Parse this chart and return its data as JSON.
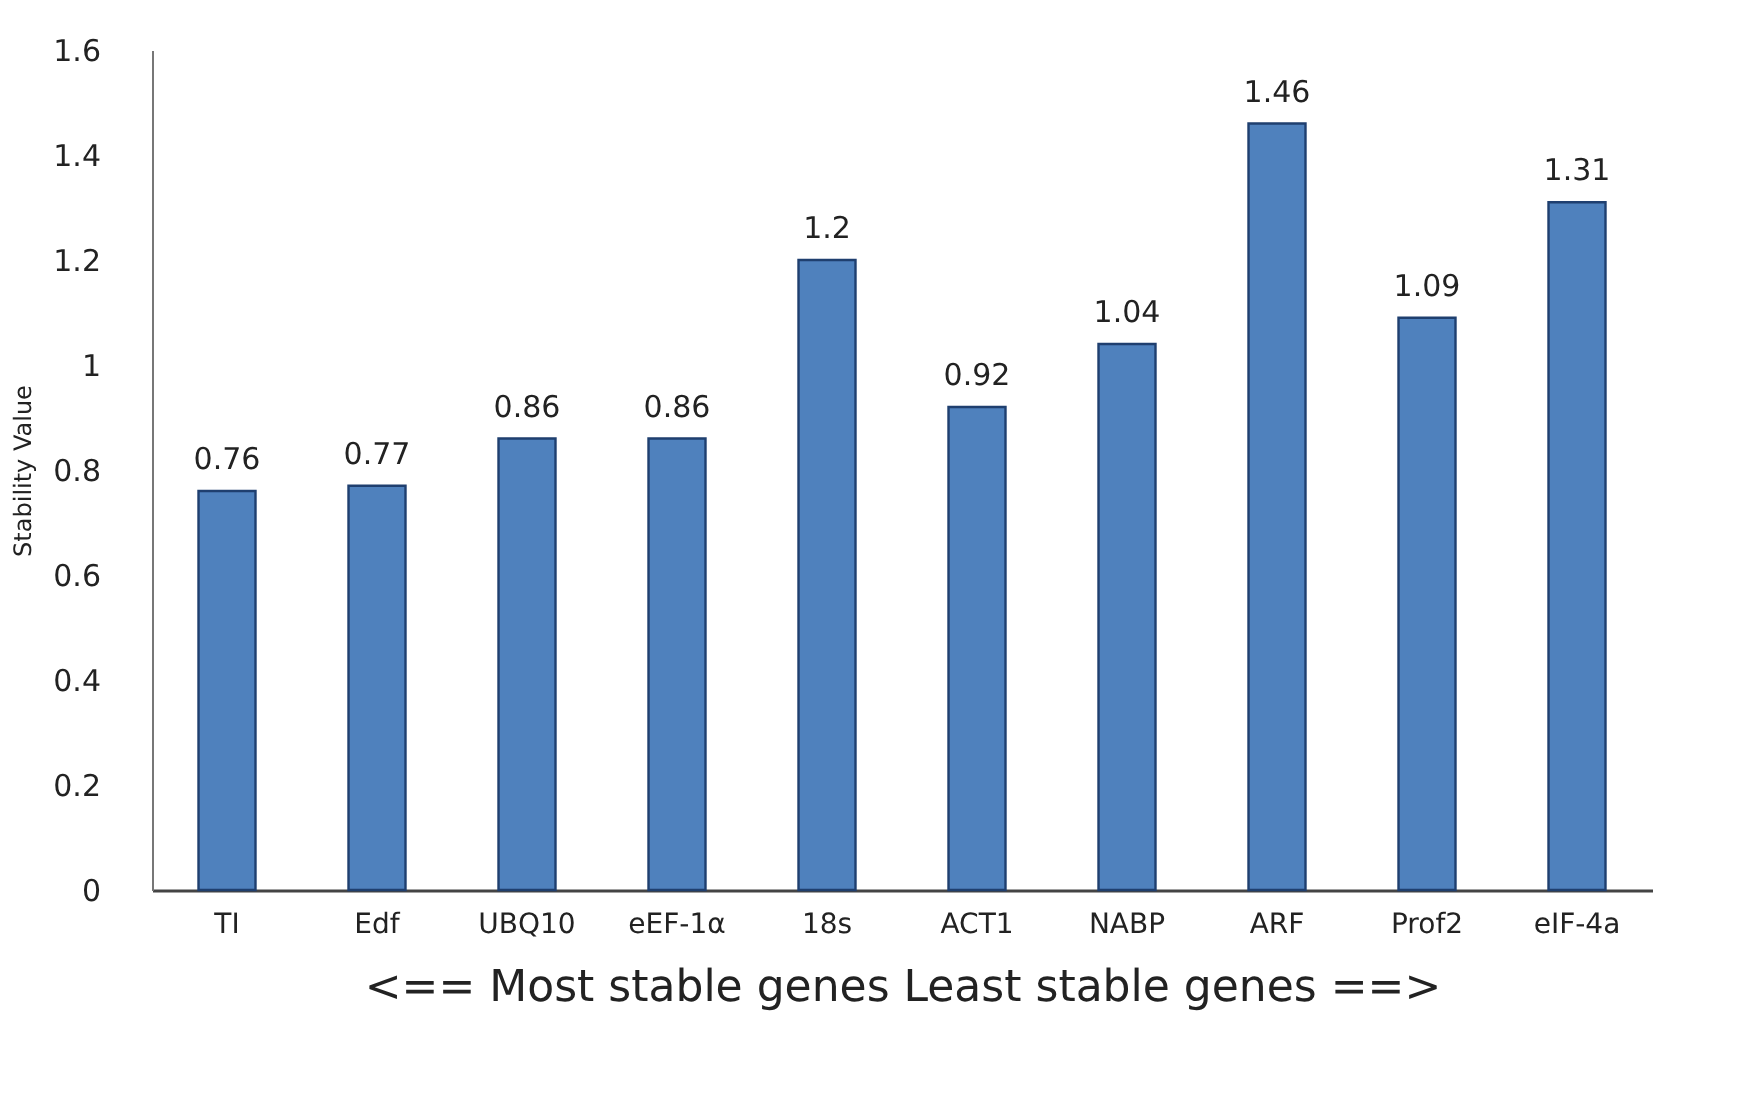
{
  "chart_data": {
    "type": "bar",
    "ylabel": "Stability Value",
    "xlabel": "<== Most stable genes    Least stable genes ==>",
    "categories": [
      "TI",
      "Edf",
      "UBQ10",
      "eEF-1α",
      "18s",
      "ACT1",
      "NABP",
      "ARF",
      "Prof2",
      "eIF-4a"
    ],
    "values": [
      0.76,
      0.77,
      0.86,
      0.86,
      1.2,
      0.92,
      1.04,
      1.46,
      1.09,
      1.31
    ],
    "color": "#4f81bd",
    "ylim": [
      0,
      1.6
    ],
    "yticks": [
      0,
      0.2,
      0.4,
      0.6,
      0.8,
      1,
      1.2,
      1.4,
      1.6
    ],
    "data_labels": true
  }
}
